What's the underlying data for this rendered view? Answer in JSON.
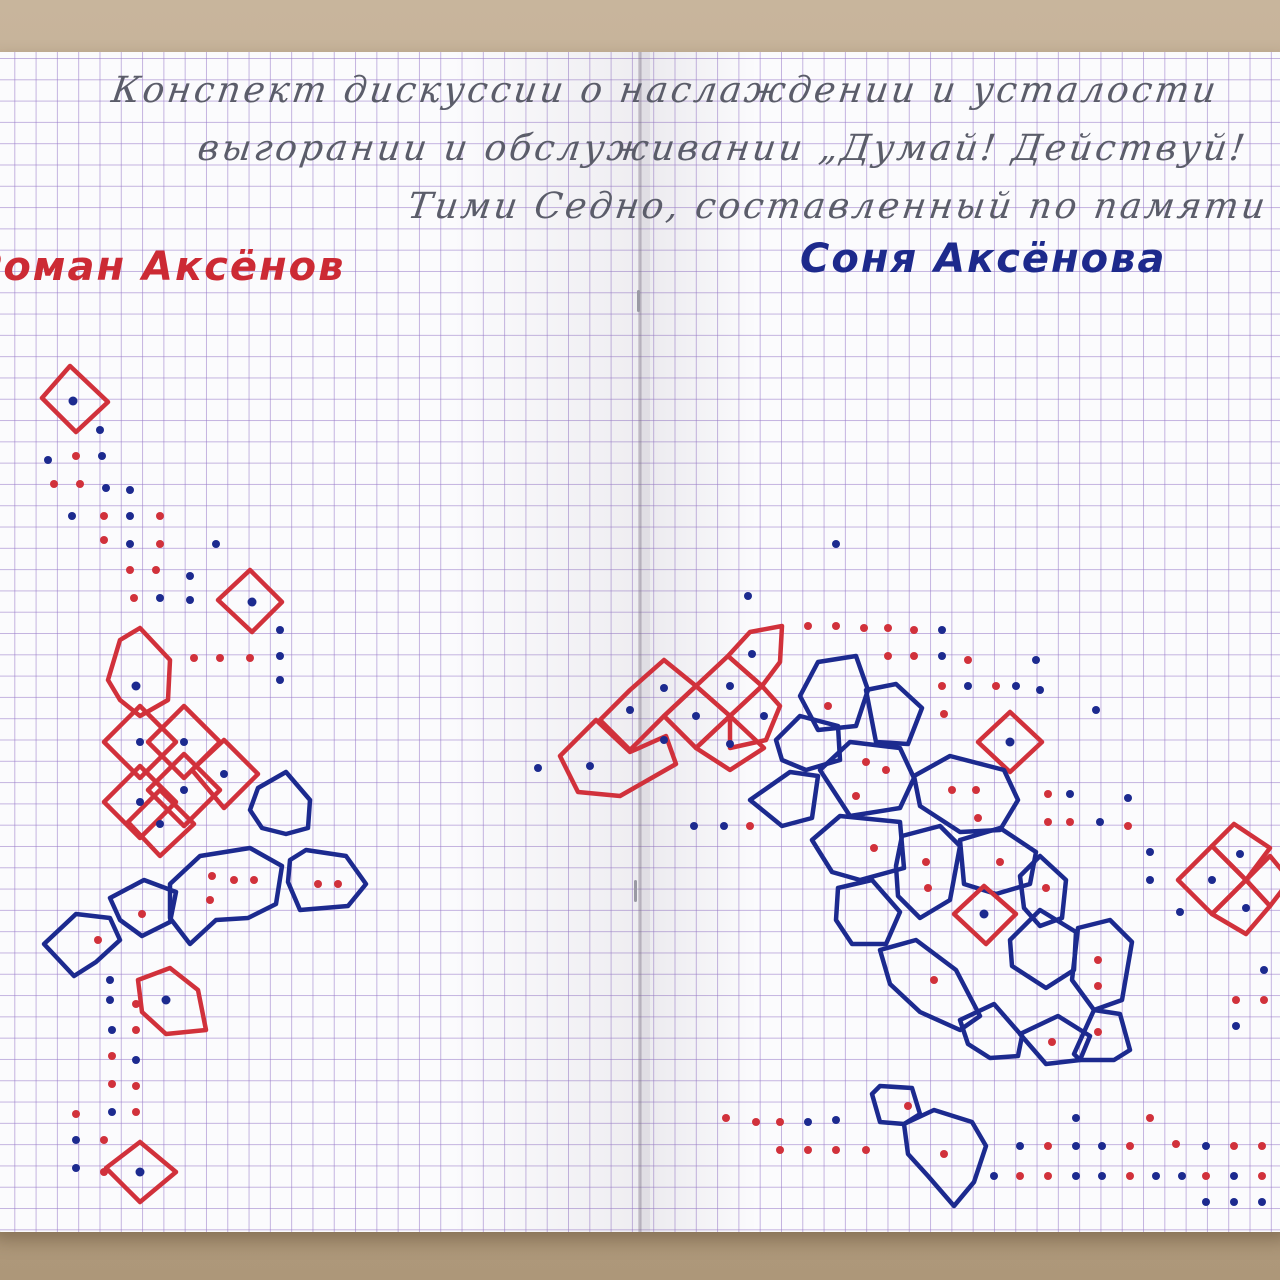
{
  "notebook": {
    "heading_lines": [
      "Конспект дискуссии о наслаждении и усталости",
      "выгорании и обслуживании „Думай! Действуй!",
      "Тими Седно, составленный по памяти"
    ],
    "authors": {
      "left": "Роман Аксёнов",
      "right": "Соня Аксёнова"
    }
  },
  "colors": {
    "red_ink": "#d1313b",
    "blue_ink": "#1c2a8f",
    "grid": "#a78fd6",
    "paper": "#fbfbfd",
    "desk": "#b9a58c"
  }
}
